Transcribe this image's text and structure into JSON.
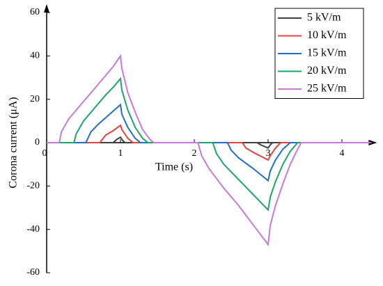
{
  "chart_data": {
    "type": "line",
    "x_label": "Time (s)",
    "y_label": "Corona current (μA)",
    "xlim": [
      0,
      4.4
    ],
    "ylim": [
      -60,
      60
    ],
    "xticks": [
      0,
      1,
      2,
      3,
      4
    ],
    "yticks": [
      -60,
      -40,
      -20,
      0,
      20,
      40,
      60
    ],
    "legend": "upper right",
    "series": [
      {
        "name": "5 kV/m",
        "color": "#404040",
        "x": [
          0,
          0.9,
          0.95,
          1.0,
          1.03,
          1.06,
          2.85,
          2.9,
          3.0,
          3.03,
          3.06,
          4.4
        ],
        "values": [
          0,
          0,
          1.5,
          2.5,
          1,
          0,
          0,
          -1,
          -2.5,
          -1,
          0,
          0
        ]
      },
      {
        "name": "10 kV/m",
        "color": "#e8403f",
        "x": [
          0,
          0.72,
          0.8,
          0.9,
          1.0,
          1.02,
          1.1,
          1.17,
          2.65,
          2.7,
          2.8,
          3.0,
          3.03,
          3.1,
          3.17,
          4.4
        ],
        "values": [
          0,
          0,
          3.5,
          5.5,
          8,
          6,
          2,
          0,
          0,
          -2.5,
          -4.5,
          -8,
          -6,
          -2.5,
          0,
          0
        ]
      },
      {
        "name": "15 kV/m",
        "color": "#1f6fc8",
        "x": [
          0,
          0.53,
          0.6,
          0.7,
          0.8,
          0.9,
          1.0,
          1.02,
          1.1,
          1.2,
          1.27,
          2.45,
          2.5,
          2.6,
          2.8,
          3.0,
          3.03,
          3.1,
          3.2,
          3.3,
          4.4
        ],
        "values": [
          0,
          0,
          5,
          8.5,
          11.5,
          14.5,
          17.5,
          13,
          7,
          2,
          0,
          0,
          -3.5,
          -7,
          -12,
          -17.5,
          -13,
          -8,
          -3,
          0,
          0
        ]
      },
      {
        "name": "20 kV/m",
        "color": "#1aa56a",
        "x": [
          0,
          0.37,
          0.4,
          0.5,
          0.6,
          0.7,
          0.8,
          0.9,
          1.0,
          1.02,
          1.1,
          1.2,
          1.3,
          1.37,
          2.25,
          2.3,
          2.4,
          2.6,
          2.8,
          3.0,
          3.03,
          3.1,
          3.2,
          3.3,
          3.4,
          4.4
        ],
        "values": [
          0,
          0,
          4,
          10,
          14,
          18,
          22,
          25.5,
          29.5,
          24,
          15,
          7,
          2,
          0,
          0,
          -5,
          -10,
          -17,
          -24,
          -31,
          -25,
          -18,
          -10,
          -4,
          0,
          0
        ]
      },
      {
        "name": "25 kV/m",
        "color": "#c878dc",
        "x": [
          0,
          0.17,
          0.2,
          0.3,
          0.4,
          0.5,
          0.6,
          0.7,
          0.8,
          0.9,
          1.0,
          1.02,
          1.1,
          1.2,
          1.3,
          1.4,
          1.45,
          2.05,
          2.1,
          2.2,
          2.4,
          2.6,
          2.8,
          3.0,
          3.03,
          3.1,
          3.2,
          3.3,
          3.4,
          3.45,
          4.4
        ],
        "values": [
          0,
          0,
          5,
          11,
          15,
          19,
          23,
          27,
          31,
          35,
          40,
          34,
          23,
          14,
          6,
          1.5,
          0,
          0,
          -6,
          -12,
          -21,
          -29,
          -38,
          -47,
          -38,
          -29,
          -19,
          -10,
          -3,
          0,
          0
        ]
      }
    ]
  }
}
